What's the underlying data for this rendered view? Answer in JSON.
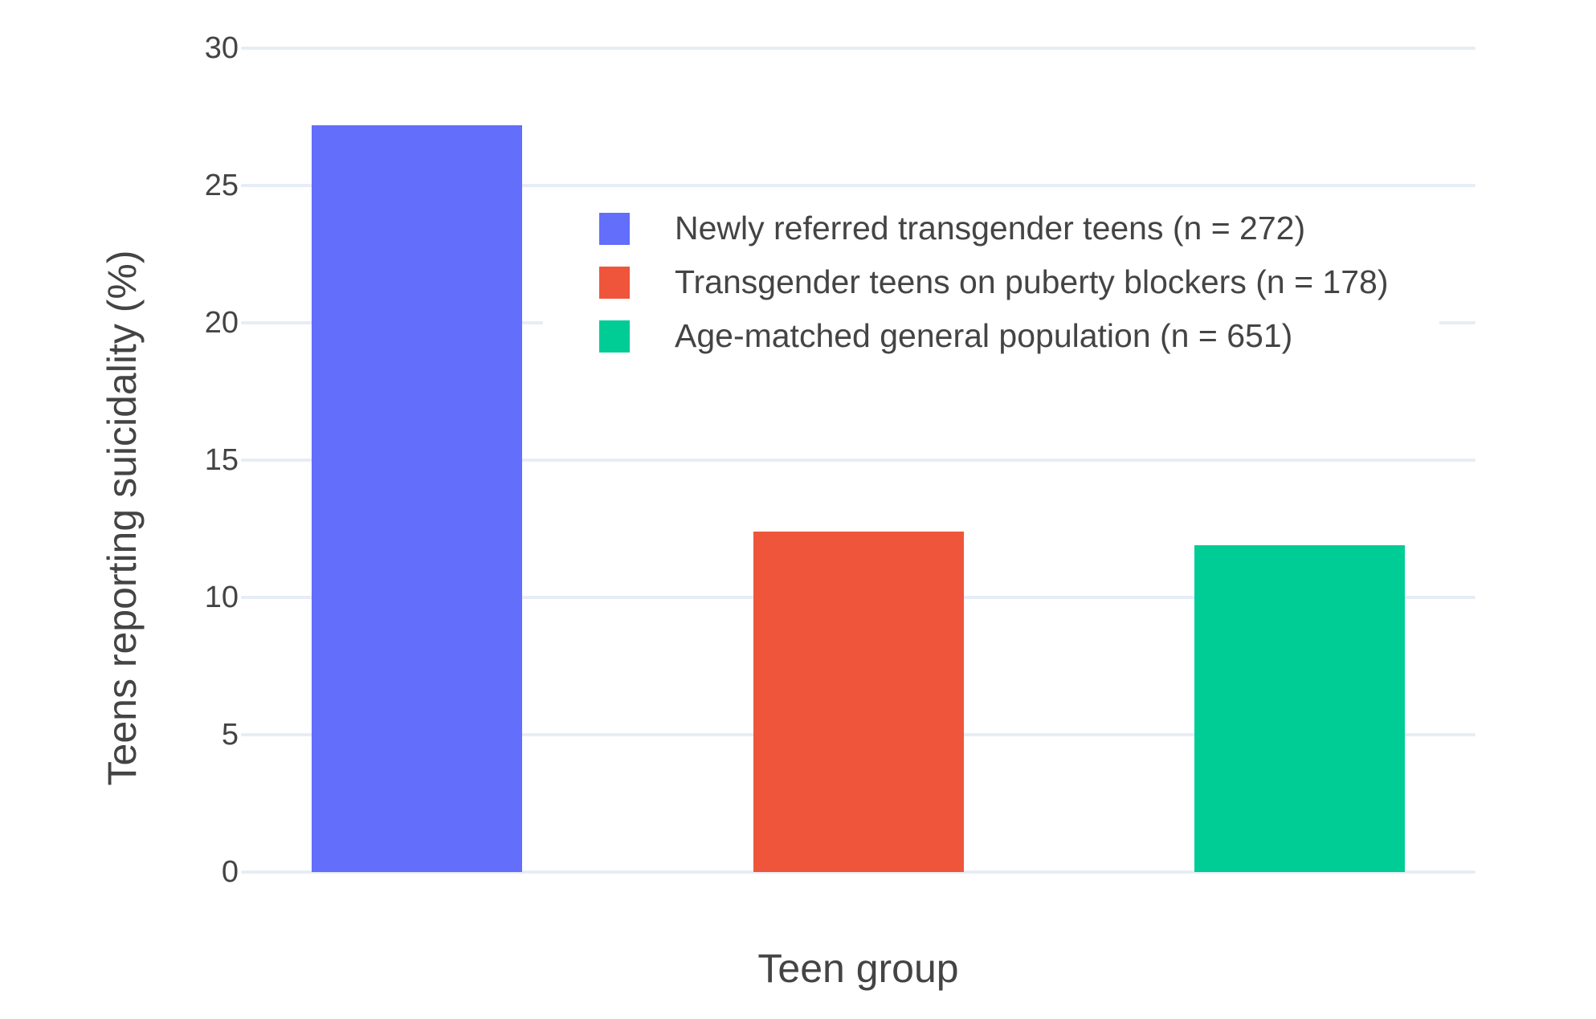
{
  "chart_data": {
    "type": "bar",
    "title": "",
    "xlabel": "Teen group",
    "ylabel": "Teens reporting suicidality (%)",
    "series": [
      {
        "name": "Newly referred transgender teens (n = 272)",
        "value": 27.2,
        "color": "#636EFA"
      },
      {
        "name": "Transgender teens on puberty blockers (n = 178)",
        "value": 12.4,
        "color": "#EF553B"
      },
      {
        "name": "Age-matched general population (n = 651)",
        "value": 11.9,
        "color": "#00CC96"
      }
    ],
    "ylim": [
      0,
      30
    ],
    "yticks": [
      0,
      5,
      10,
      15,
      20,
      25,
      30
    ],
    "grid": true,
    "legend_position": "inside-top",
    "colors": {
      "background": "#ffffff",
      "gridline": "#E7EDF6",
      "text": "#444444"
    }
  }
}
